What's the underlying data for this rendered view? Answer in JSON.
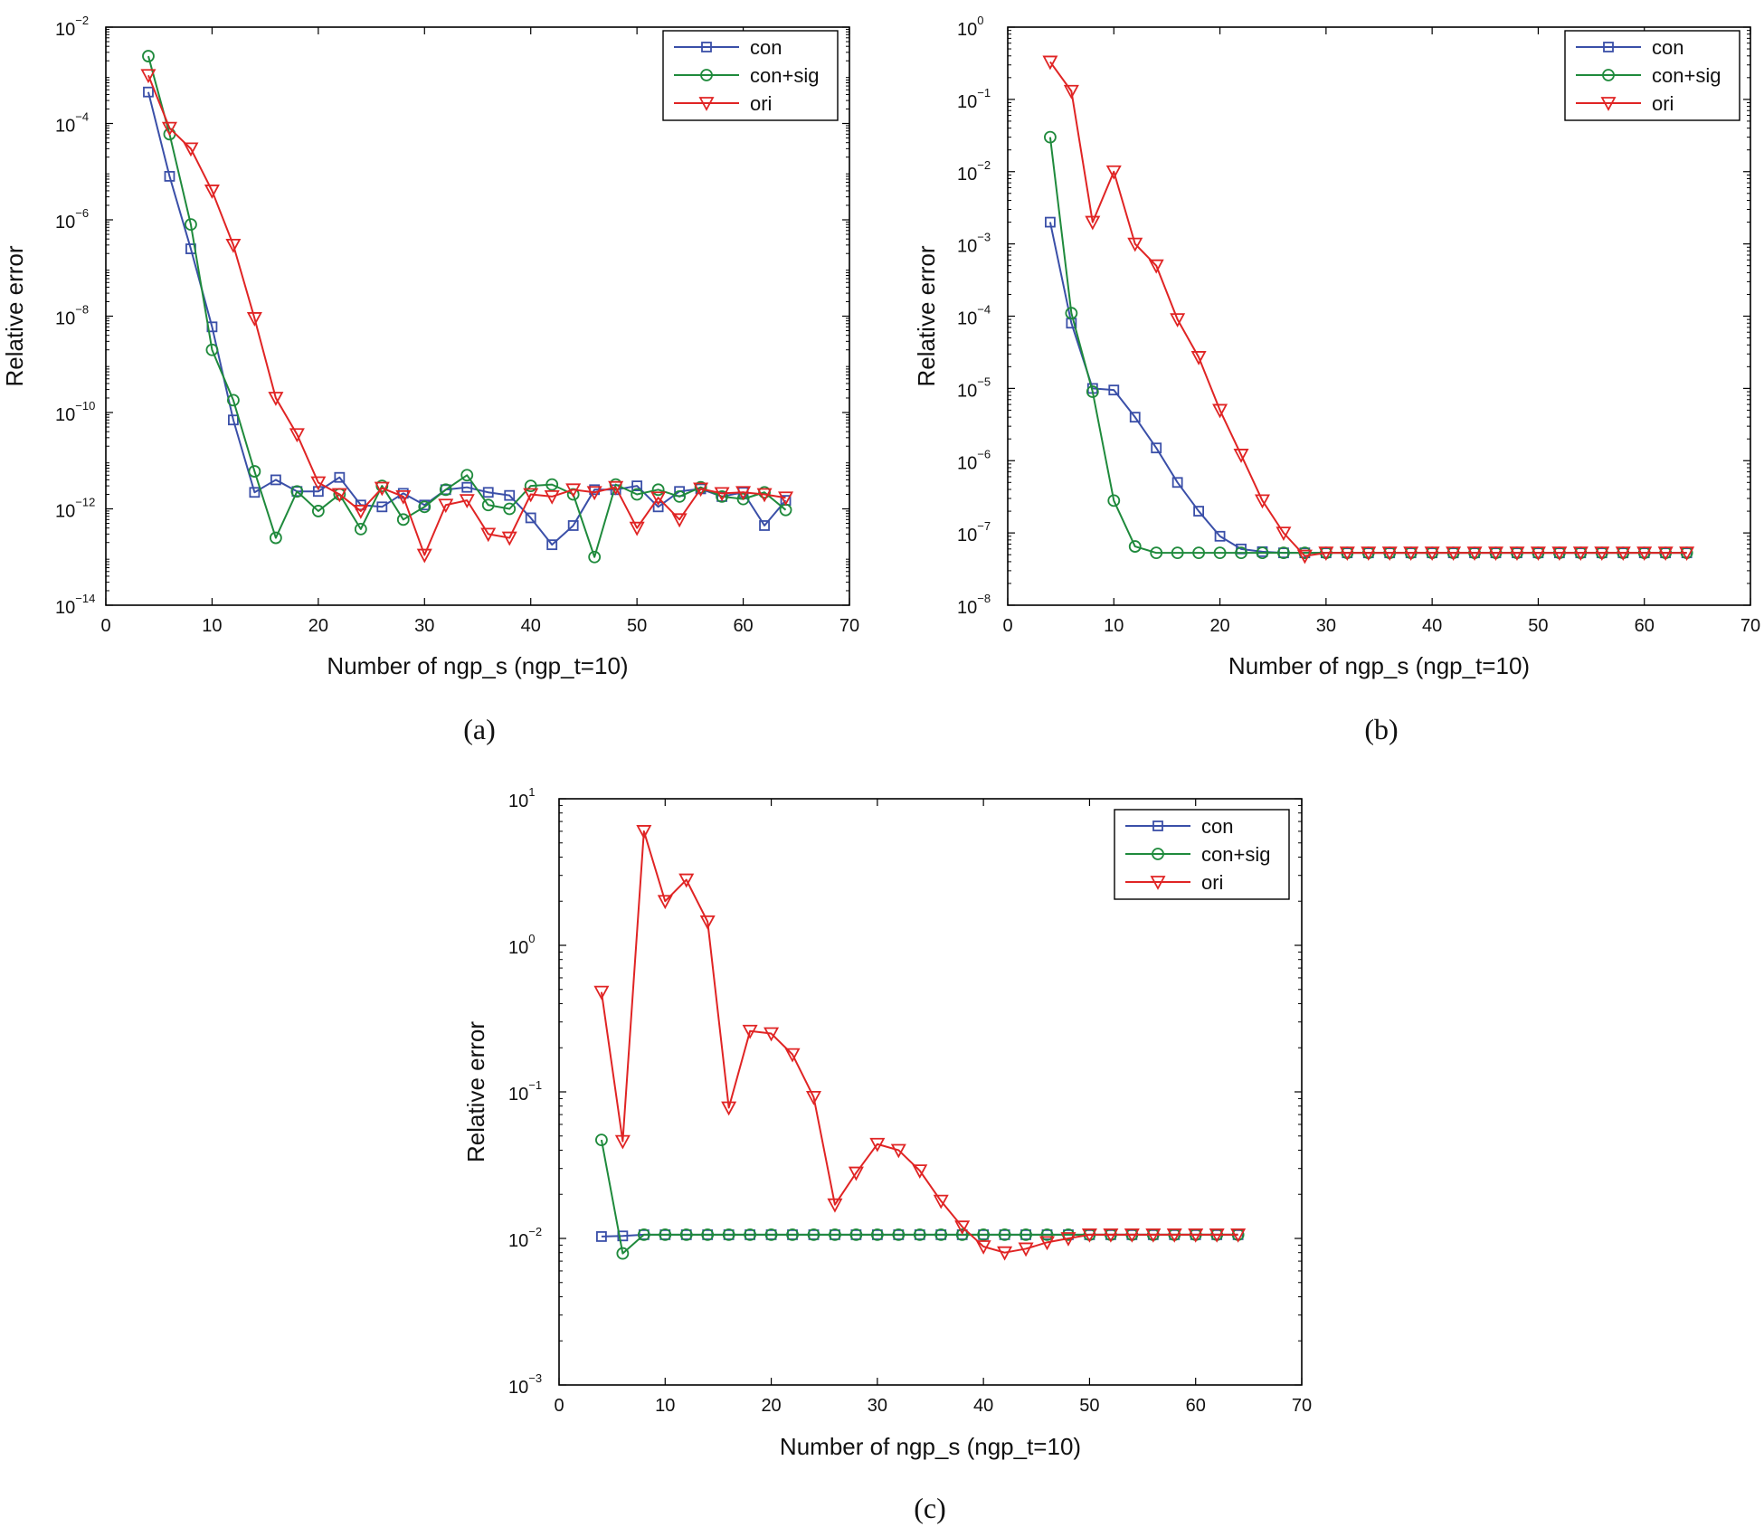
{
  "figure": {
    "captions": [
      "(a)",
      "(b)",
      "(c)"
    ]
  },
  "colors": {
    "con": "#3a4fa8",
    "con_sig": "#1f8a3c",
    "ori": "#e02424"
  },
  "chart_data": [
    {
      "id": "a",
      "type": "line",
      "yscale": "log",
      "title": "",
      "xlabel": "Number of ngp_s (ngp_t=10)",
      "ylabel": "Relative error",
      "xlim": [
        0,
        70
      ],
      "xticks": [
        0,
        10,
        20,
        30,
        40,
        50,
        60,
        70
      ],
      "ylim_exp": [
        -14,
        -2
      ],
      "yticks_exp": [
        -14,
        -12,
        -10,
        -8,
        -6,
        -4,
        -2
      ],
      "legend_position": "top-right",
      "x": [
        4,
        6,
        8,
        10,
        12,
        14,
        16,
        18,
        20,
        22,
        24,
        26,
        28,
        30,
        32,
        34,
        36,
        38,
        40,
        42,
        44,
        46,
        48,
        50,
        52,
        54,
        56,
        58,
        60,
        62,
        64
      ],
      "series": [
        {
          "name": "con",
          "marker": "square",
          "values": [
            0.00045,
            8e-06,
            2.5e-07,
            6e-09,
            7e-11,
            2.2e-12,
            4e-12,
            2.3e-12,
            2.3e-12,
            4.5e-12,
            1.2e-12,
            1.1e-12,
            2.1e-12,
            1.2e-12,
            2.5e-12,
            2.8e-12,
            2.2e-12,
            1.9e-12,
            6.5e-13,
            1.8e-13,
            4.5e-13,
            2.5e-12,
            2.5e-12,
            3e-12,
            1.1e-12,
            2.3e-12,
            2.6e-12,
            1.8e-12,
            2.2e-12,
            4.5e-13,
            1.5e-12
          ]
        },
        {
          "name": "con+sig",
          "marker": "circle",
          "values": [
            0.0025,
            6e-05,
            8e-07,
            2e-09,
            1.8e-10,
            6e-12,
            2.5e-13,
            2.3e-12,
            9e-13,
            2e-12,
            3.8e-13,
            3e-12,
            6e-13,
            1.1e-12,
            2.5e-12,
            5e-12,
            1.2e-12,
            1e-12,
            3e-12,
            3.2e-12,
            2e-12,
            1e-13,
            3.2e-12,
            2e-12,
            2.5e-12,
            1.8e-12,
            2.8e-12,
            1.8e-12,
            1.6e-12,
            2.2e-12,
            9.5e-13
          ]
        },
        {
          "name": "ori",
          "marker": "triangle-down",
          "values": [
            0.001,
            8e-05,
            3e-05,
            4e-06,
            3e-07,
            9e-09,
            2e-10,
            3.5e-11,
            3.5e-12,
            2e-12,
            9e-13,
            2.7e-12,
            1.8e-12,
            1.1e-13,
            1.2e-12,
            1.5e-12,
            3e-13,
            2.5e-13,
            2e-12,
            1.8e-12,
            2.5e-12,
            2.2e-12,
            2.8e-12,
            4e-13,
            1.7e-12,
            6e-13,
            2.6e-12,
            2.1e-12,
            2.2e-12,
            2e-12,
            1.7e-12
          ]
        }
      ]
    },
    {
      "id": "b",
      "type": "line",
      "yscale": "log",
      "title": "",
      "xlabel": "Number of ngp_s (ngp_t=10)",
      "ylabel": "Relative error",
      "xlim": [
        0,
        70
      ],
      "xticks": [
        0,
        10,
        20,
        30,
        40,
        50,
        60,
        70
      ],
      "ylim_exp": [
        -8,
        0
      ],
      "yticks_exp": [
        -8,
        -7,
        -6,
        -5,
        -4,
        -3,
        -2,
        -1,
        0
      ],
      "legend_position": "top-right",
      "x": [
        4,
        6,
        8,
        10,
        12,
        14,
        16,
        18,
        20,
        22,
        24,
        26,
        28,
        30,
        32,
        34,
        36,
        38,
        40,
        42,
        44,
        46,
        48,
        50,
        52,
        54,
        56,
        58,
        60,
        62,
        64
      ],
      "series": [
        {
          "name": "con",
          "marker": "square",
          "values": [
            0.002,
            8e-05,
            1e-05,
            9.5e-06,
            4e-06,
            1.5e-06,
            5e-07,
            2e-07,
            9e-08,
            6e-08,
            5.5e-08,
            5.3e-08,
            5.3e-08,
            5.3e-08,
            5.3e-08,
            5.3e-08,
            5.3e-08,
            5.3e-08,
            5.3e-08,
            5.3e-08,
            5.3e-08,
            5.3e-08,
            5.3e-08,
            5.3e-08,
            5.3e-08,
            5.3e-08,
            5.3e-08,
            5.3e-08,
            5.3e-08,
            5.3e-08,
            5.3e-08
          ]
        },
        {
          "name": "con+sig",
          "marker": "circle",
          "values": [
            0.03,
            0.00011,
            9e-06,
            2.8e-07,
            6.5e-08,
            5.3e-08,
            5.3e-08,
            5.3e-08,
            5.3e-08,
            5.3e-08,
            5.3e-08,
            5.3e-08,
            5.3e-08,
            5.3e-08,
            5.3e-08,
            5.3e-08,
            5.3e-08,
            5.3e-08,
            5.3e-08,
            5.3e-08,
            5.3e-08,
            5.3e-08,
            5.3e-08,
            5.3e-08,
            5.3e-08,
            5.3e-08,
            5.3e-08,
            5.3e-08,
            5.3e-08,
            5.3e-08,
            5.3e-08
          ]
        },
        {
          "name": "ori",
          "marker": "triangle-down",
          "values": [
            0.33,
            0.13,
            0.002,
            0.01,
            0.001,
            0.0005,
            9e-05,
            2.7e-05,
            5e-06,
            1.2e-06,
            2.8e-07,
            1e-07,
            4.8e-08,
            5.3e-08,
            5.3e-08,
            5.3e-08,
            5.3e-08,
            5.3e-08,
            5.3e-08,
            5.3e-08,
            5.3e-08,
            5.3e-08,
            5.3e-08,
            5.3e-08,
            5.3e-08,
            5.3e-08,
            5.3e-08,
            5.3e-08,
            5.3e-08,
            5.3e-08,
            5.3e-08
          ]
        }
      ]
    },
    {
      "id": "c",
      "type": "line",
      "yscale": "log",
      "title": "",
      "xlabel": "Number of ngp_s (ngp_t=10)",
      "ylabel": "Relative error",
      "xlim": [
        0,
        70
      ],
      "xticks": [
        0,
        10,
        20,
        30,
        40,
        50,
        60,
        70
      ],
      "ylim_exp": [
        -3,
        1
      ],
      "yticks_exp": [
        -3,
        -2,
        -1,
        0,
        1
      ],
      "legend_position": "top-right",
      "x": [
        4,
        6,
        8,
        10,
        12,
        14,
        16,
        18,
        20,
        22,
        24,
        26,
        28,
        30,
        32,
        34,
        36,
        38,
        40,
        42,
        44,
        46,
        48,
        50,
        52,
        54,
        56,
        58,
        60,
        62,
        64
      ],
      "series": [
        {
          "name": "con",
          "marker": "square",
          "values": [
            0.0103,
            0.0104,
            0.0106,
            0.0106,
            0.0106,
            0.0106,
            0.0106,
            0.0106,
            0.0106,
            0.0106,
            0.0106,
            0.0106,
            0.0106,
            0.0106,
            0.0106,
            0.0106,
            0.0106,
            0.0106,
            0.0106,
            0.0106,
            0.0106,
            0.0106,
            0.0106,
            0.0106,
            0.0106,
            0.0106,
            0.0106,
            0.0106,
            0.0106,
            0.0106,
            0.0106
          ]
        },
        {
          "name": "con+sig",
          "marker": "circle",
          "values": [
            0.047,
            0.0079,
            0.0106,
            0.0106,
            0.0106,
            0.0106,
            0.0106,
            0.0106,
            0.0106,
            0.0106,
            0.0106,
            0.0106,
            0.0106,
            0.0106,
            0.0106,
            0.0106,
            0.0106,
            0.0106,
            0.0106,
            0.0106,
            0.0106,
            0.0106,
            0.0106,
            0.0106,
            0.0106,
            0.0106,
            0.0106,
            0.0106,
            0.0106,
            0.0106,
            0.0106
          ]
        },
        {
          "name": "ori",
          "marker": "triangle-down",
          "values": [
            0.48,
            0.046,
            6.0,
            2.0,
            2.8,
            1.45,
            0.078,
            0.26,
            0.25,
            0.18,
            0.092,
            0.017,
            0.028,
            0.044,
            0.04,
            0.029,
            0.018,
            0.012,
            0.0088,
            0.008,
            0.0085,
            0.0094,
            0.01,
            0.0106,
            0.0106,
            0.0106,
            0.0106,
            0.0106,
            0.0106,
            0.0106,
            0.0106
          ]
        }
      ]
    }
  ]
}
